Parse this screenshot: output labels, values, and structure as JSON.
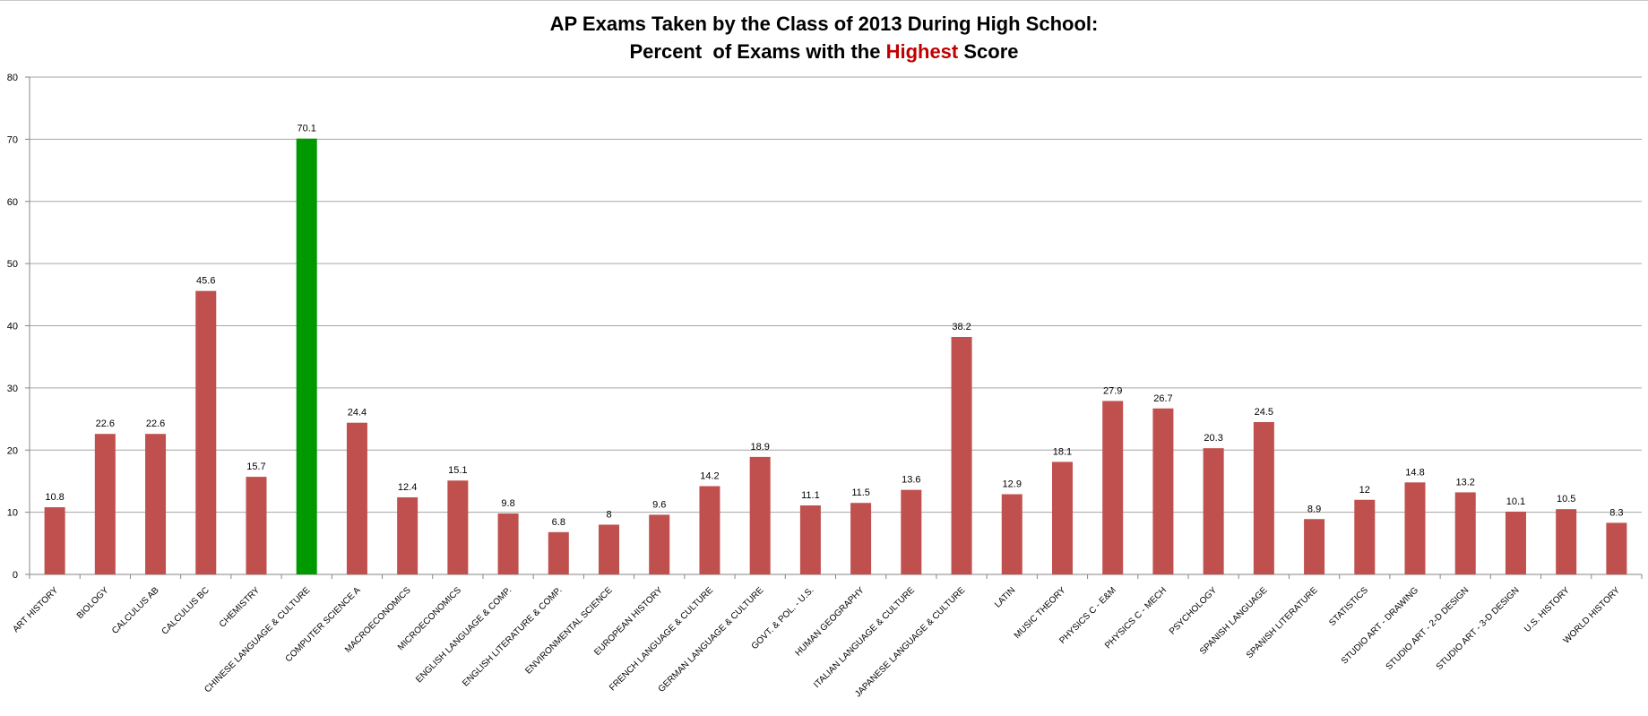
{
  "title": {
    "line1": "AP Exams Taken by the Class of 2013 During High School:",
    "line2_before": "Percent  of Exams with the ",
    "line2_highlight": "Highest",
    "line2_after": " Score"
  },
  "colors": {
    "bar": "#c0504d",
    "highlight_bar": "#009900",
    "title_highlight": "#c00000",
    "grid": "#a6a6a6",
    "axis": "#868686"
  },
  "chart_data": {
    "type": "bar",
    "title": "AP Exams Taken by the Class of 2013 During High School: Percent  of Exams with the Highest Score",
    "xlabel": "",
    "ylabel": "",
    "ylim": [
      0,
      80
    ],
    "yticks": [
      0,
      10,
      20,
      30,
      40,
      50,
      60,
      70,
      80
    ],
    "grid": true,
    "legend": "none",
    "highlight_category": "CHINESE LANGUAGE & CULTURE",
    "categories": [
      "ART HISTORY",
      "BIOLOGY",
      "CALCULUS AB",
      "CALCULUS BC",
      "CHEMISTRY",
      "CHINESE LANGUAGE & CULTURE",
      "COMPUTER SCIENCE A",
      "MACROECONOMICS",
      "MICROECONOMICS",
      "ENGLISH LANGUAGE & COMP.",
      "ENGLISH LITERATURE & COMP.",
      "ENVIRONMENTAL  SCIENCE",
      "EUROPEAN HISTORY",
      "FRENCH LANGUAGE & CULTURE",
      "GERMAN LANGUAGE & CULTURE",
      "GOVT. & POL. - U.S.",
      "HUMAN GEOGRAPHY",
      "ITALIAN LANGUAGE & CULTURE",
      "JAPANESE LANGUAGE & CULTURE",
      "LATIN",
      "MUSIC THEORY",
      "PHYSICS C - E&M",
      "PHYSICS C - MECH",
      "PSYCHOLOGY",
      "SPANISH LANGUAGE",
      "SPANISH LITERATURE",
      "STATISTICS",
      "STUDIO ART - DRAWING",
      "STUDIO ART - 2-D DESIGN",
      "STUDIO ART - 3-D DESIGN",
      "U.S. HISTORY",
      "WORLD HISTORY"
    ],
    "values": [
      10.8,
      22.6,
      22.6,
      45.6,
      15.7,
      70.1,
      24.4,
      12.4,
      15.1,
      9.8,
      6.8,
      8,
      9.6,
      14.2,
      18.9,
      11.1,
      11.5,
      13.6,
      38.2,
      12.9,
      18.1,
      27.9,
      26.7,
      20.3,
      24.5,
      8.9,
      12,
      14.8,
      13.2,
      10.1,
      10.5,
      8.3
    ]
  }
}
